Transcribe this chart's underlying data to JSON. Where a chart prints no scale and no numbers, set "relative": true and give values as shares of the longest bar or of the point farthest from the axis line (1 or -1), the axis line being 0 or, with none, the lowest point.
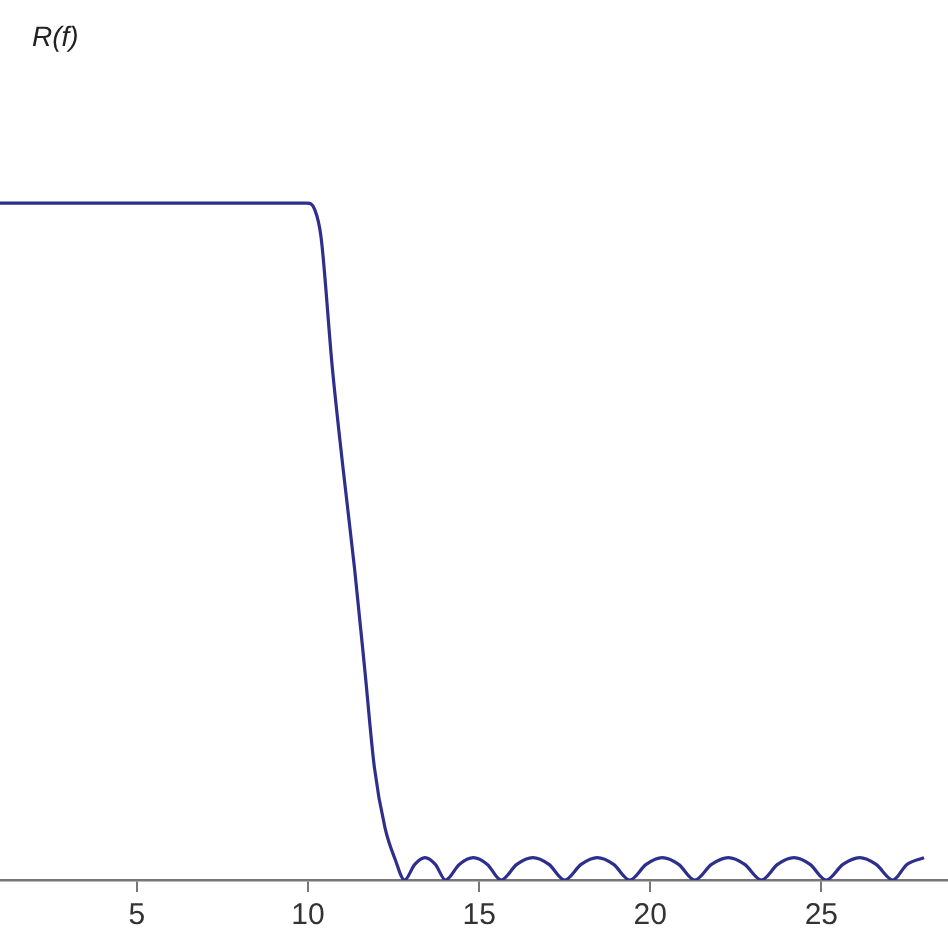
{
  "chart_data": {
    "type": "line",
    "annotations": [
      "R(f)"
    ],
    "relative": true,
    "xlim": [
      1,
      28.7
    ],
    "xticks": [
      5,
      10,
      15,
      20,
      25
    ],
    "grid": false,
    "legend": false,
    "marker": "none",
    "x": [
      1,
      9.97,
      10.2,
      10.38,
      10.71,
      11.02,
      11.36,
      11.66,
      11.94,
      12.25,
      12.55,
      12.82,
      13.12,
      13.42,
      13.72,
      14.02,
      14.42,
      14.83,
      15.24,
      15.64,
      16.1,
      16.57,
      17.04,
      17.5,
      17.98,
      18.45,
      18.93,
      19.4,
      19.88,
      20.35,
      20.83,
      21.3,
      21.79,
      22.28,
      22.76,
      23.25,
      23.72,
      24.2,
      24.67,
      25.14,
      25.63,
      26.12,
      26.6,
      27.09,
      27.5,
      28.0
    ],
    "series": [
      {
        "color": "#2e2e8c",
        "values": [
          1,
          1,
          0.99,
          0.95,
          0.757,
          0.61,
          0.46,
          0.31,
          0.166,
          0.077,
          0.03,
          0,
          0.023,
          0.033,
          0.023,
          0,
          0.023,
          0.033,
          0.023,
          0,
          0.023,
          0.033,
          0.023,
          0,
          0.023,
          0.033,
          0.023,
          0,
          0.023,
          0.033,
          0.023,
          0,
          0.023,
          0.033,
          0.023,
          0,
          0.023,
          0.033,
          0.023,
          0,
          0.023,
          0.033,
          0.023,
          0,
          0.023,
          0.033
        ]
      }
    ]
  }
}
